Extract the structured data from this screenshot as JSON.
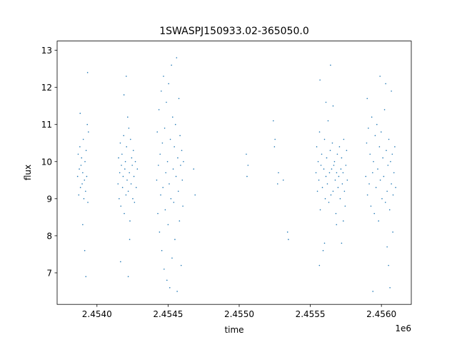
{
  "chart_data": {
    "type": "scatter",
    "title": "1SWASPJ150933.02-365050.0",
    "xlabel": "time",
    "ylabel": "flux",
    "x_offset_label": "1e6",
    "xlim": [
      2453720,
      2456210
    ],
    "ylim": [
      6.15,
      13.25
    ],
    "x_ticks": [
      {
        "value": 2454000,
        "label": "2.4540"
      },
      {
        "value": 2454500,
        "label": "2.4545"
      },
      {
        "value": 2455000,
        "label": "2.4550"
      },
      {
        "value": 2455500,
        "label": "2.4555"
      },
      {
        "value": 2456000,
        "label": "2.4560"
      }
    ],
    "y_ticks": [
      {
        "value": 7,
        "label": "7"
      },
      {
        "value": 8,
        "label": "8"
      },
      {
        "value": 9,
        "label": "9"
      },
      {
        "value": 10,
        "label": "10"
      },
      {
        "value": 11,
        "label": "11"
      },
      {
        "value": 12,
        "label": "12"
      },
      {
        "value": 13,
        "label": "13"
      }
    ],
    "grid": false,
    "marker_color": "#1f77b4",
    "series": [
      {
        "points": [
          [
            2453864,
            9.6
          ],
          [
            2453868,
            10.2
          ],
          [
            2453872,
            9.1
          ],
          [
            2453876,
            9.8
          ],
          [
            2453880,
            10.4
          ],
          [
            2453884,
            9.3
          ],
          [
            2453888,
            9.9
          ],
          [
            2453892,
            10.1
          ],
          [
            2453896,
            9.4
          ],
          [
            2453900,
            9.7
          ],
          [
            2453904,
            10.6
          ],
          [
            2453908,
            9.0
          ],
          [
            2453912,
            9.5
          ],
          [
            2453916,
            10.0
          ],
          [
            2453920,
            9.2
          ],
          [
            2453924,
            10.3
          ],
          [
            2453928,
            9.6
          ],
          [
            2453932,
            11.0
          ],
          [
            2453936,
            8.9
          ],
          [
            2453940,
            10.8
          ],
          [
            2453882,
            11.3
          ],
          [
            2453914,
            7.6
          ],
          [
            2453922,
            6.9
          ],
          [
            2453934,
            12.4
          ],
          [
            2453900,
            8.3
          ],
          [
            2454148,
            9.4
          ],
          [
            2454152,
            10.1
          ],
          [
            2454156,
            9.0
          ],
          [
            2454160,
            9.7
          ],
          [
            2454164,
            10.5
          ],
          [
            2454168,
            8.8
          ],
          [
            2454172,
            9.9
          ],
          [
            2454176,
            10.2
          ],
          [
            2454180,
            9.3
          ],
          [
            2454184,
            9.6
          ],
          [
            2454188,
            10.7
          ],
          [
            2454192,
            8.6
          ],
          [
            2454196,
            9.8
          ],
          [
            2454200,
            10.0
          ],
          [
            2454204,
            9.1
          ],
          [
            2454208,
            10.4
          ],
          [
            2454212,
            9.5
          ],
          [
            2454216,
            11.2
          ],
          [
            2454220,
            9.2
          ],
          [
            2454224,
            10.9
          ],
          [
            2454228,
            9.7
          ],
          [
            2454232,
            8.4
          ],
          [
            2454236,
            10.6
          ],
          [
            2454240,
            9.4
          ],
          [
            2454244,
            10.1
          ],
          [
            2454248,
            9.9
          ],
          [
            2454252,
            9.0
          ],
          [
            2454256,
            10.3
          ],
          [
            2454260,
            9.6
          ],
          [
            2454264,
            8.9
          ],
          [
            2454270,
            10.0
          ],
          [
            2454276,
            9.3
          ],
          [
            2454284,
            9.8
          ],
          [
            2454190,
            11.8
          ],
          [
            2454206,
            12.3
          ],
          [
            2454220,
            6.9
          ],
          [
            2454166,
            7.3
          ],
          [
            2454230,
            7.9
          ],
          [
            2454420,
            9.5
          ],
          [
            2454424,
            10.8
          ],
          [
            2454428,
            8.6
          ],
          [
            2454432,
            9.9
          ],
          [
            2454436,
            11.4
          ],
          [
            2454440,
            8.1
          ],
          [
            2454444,
            10.2
          ],
          [
            2454448,
            9.1
          ],
          [
            2454452,
            11.9
          ],
          [
            2454456,
            7.6
          ],
          [
            2454460,
            10.5
          ],
          [
            2454464,
            9.3
          ],
          [
            2454468,
            12.3
          ],
          [
            2454472,
            7.1
          ],
          [
            2454476,
            10.9
          ],
          [
            2454480,
            8.7
          ],
          [
            2454484,
            9.7
          ],
          [
            2454488,
            11.6
          ],
          [
            2454492,
            6.8
          ],
          [
            2454496,
            10.0
          ],
          [
            2454500,
            8.3
          ],
          [
            2454504,
            12.1
          ],
          [
            2454508,
            9.4
          ],
          [
            2454512,
            6.6
          ],
          [
            2454516,
            10.6
          ],
          [
            2454520,
            9.0
          ],
          [
            2454524,
            12.6
          ],
          [
            2454528,
            7.4
          ],
          [
            2454532,
            11.2
          ],
          [
            2454536,
            9.8
          ],
          [
            2454540,
            8.9
          ],
          [
            2454544,
            10.4
          ],
          [
            2454548,
            7.9
          ],
          [
            2454552,
            11.0
          ],
          [
            2454556,
            9.6
          ],
          [
            2454560,
            12.8
          ],
          [
            2454564,
            6.5
          ],
          [
            2454568,
            10.1
          ],
          [
            2454572,
            9.2
          ],
          [
            2454576,
            11.7
          ],
          [
            2454580,
            8.4
          ],
          [
            2454584,
            10.7
          ],
          [
            2454588,
            9.9
          ],
          [
            2454592,
            7.2
          ],
          [
            2454596,
            10.3
          ],
          [
            2454600,
            9.5
          ],
          [
            2454604,
            8.8
          ],
          [
            2454608,
            10.0
          ],
          [
            2454680,
            9.8
          ],
          [
            2454690,
            9.1
          ],
          [
            2455050,
            10.2
          ],
          [
            2455055,
            9.6
          ],
          [
            2455062,
            9.9
          ],
          [
            2455240,
            11.1
          ],
          [
            2455248,
            10.4
          ],
          [
            2455252,
            10.6
          ],
          [
            2455270,
            9.4
          ],
          [
            2455276,
            9.7
          ],
          [
            2455310,
            9.5
          ],
          [
            2455340,
            8.1
          ],
          [
            2455346,
            7.9
          ],
          [
            2455540,
            9.7
          ],
          [
            2455545,
            10.4
          ],
          [
            2455550,
            9.2
          ],
          [
            2455555,
            10.0
          ],
          [
            2455560,
            9.5
          ],
          [
            2455565,
            10.8
          ],
          [
            2455570,
            8.7
          ],
          [
            2455575,
            9.9
          ],
          [
            2455580,
            10.2
          ],
          [
            2455585,
            9.3
          ],
          [
            2455590,
            7.6
          ],
          [
            2455595,
            9.8
          ],
          [
            2455600,
            10.6
          ],
          [
            2455605,
            9.0
          ],
          [
            2455610,
            9.6
          ],
          [
            2455615,
            10.1
          ],
          [
            2455620,
            9.4
          ],
          [
            2455625,
            11.1
          ],
          [
            2455630,
            8.9
          ],
          [
            2455635,
            9.7
          ],
          [
            2455640,
            10.3
          ],
          [
            2455645,
            9.1
          ],
          [
            2455650,
            9.8
          ],
          [
            2455655,
            10.5
          ],
          [
            2455660,
            9.2
          ],
          [
            2455665,
            9.9
          ],
          [
            2455670,
            10.0
          ],
          [
            2455675,
            9.5
          ],
          [
            2455680,
            8.6
          ],
          [
            2455685,
            9.7
          ],
          [
            2455690,
            10.2
          ],
          [
            2455695,
            9.3
          ],
          [
            2455700,
            9.6
          ],
          [
            2455705,
            10.4
          ],
          [
            2455710,
            9.0
          ],
          [
            2455715,
            9.8
          ],
          [
            2455720,
            10.1
          ],
          [
            2455725,
            9.4
          ],
          [
            2455730,
            9.7
          ],
          [
            2455735,
            10.6
          ],
          [
            2455740,
            9.2
          ],
          [
            2455745,
            8.8
          ],
          [
            2455750,
            9.9
          ],
          [
            2455755,
            10.3
          ],
          [
            2455760,
            9.5
          ],
          [
            2455568,
            12.2
          ],
          [
            2455564,
            7.2
          ],
          [
            2455600,
            7.8
          ],
          [
            2455610,
            11.6
          ],
          [
            2455660,
            11.5
          ],
          [
            2455684,
            8.3
          ],
          [
            2455732,
            8.4
          ],
          [
            2455720,
            7.8
          ],
          [
            2455642,
            12.6
          ],
          [
            2455890,
            9.6
          ],
          [
            2455896,
            10.5
          ],
          [
            2455902,
            9.1
          ],
          [
            2455908,
            10.9
          ],
          [
            2455914,
            9.4
          ],
          [
            2455920,
            10.2
          ],
          [
            2455926,
            8.8
          ],
          [
            2455932,
            11.2
          ],
          [
            2455938,
            9.7
          ],
          [
            2455944,
            10.0
          ],
          [
            2455950,
            8.6
          ],
          [
            2455956,
            10.7
          ],
          [
            2455962,
            9.3
          ],
          [
            2455968,
            11.0
          ],
          [
            2455974,
            9.8
          ],
          [
            2455980,
            8.4
          ],
          [
            2455986,
            10.4
          ],
          [
            2455992,
            9.5
          ],
          [
            2455998,
            10.8
          ],
          [
            2456004,
            9.0
          ],
          [
            2456010,
            10.1
          ],
          [
            2456016,
            9.6
          ],
          [
            2456022,
            11.4
          ],
          [
            2456028,
            8.9
          ],
          [
            2456034,
            10.3
          ],
          [
            2456040,
            9.2
          ],
          [
            2456046,
            9.9
          ],
          [
            2456052,
            10.6
          ],
          [
            2456058,
            8.7
          ],
          [
            2456064,
            10.0
          ],
          [
            2456070,
            9.4
          ],
          [
            2456076,
            10.2
          ],
          [
            2456082,
            9.1
          ],
          [
            2456088,
            9.7
          ],
          [
            2456094,
            10.4
          ],
          [
            2456100,
            9.3
          ],
          [
            2455900,
            11.7
          ],
          [
            2455990,
            12.3
          ],
          [
            2456030,
            12.1
          ],
          [
            2456050,
            7.2
          ],
          [
            2456060,
            6.6
          ],
          [
            2456040,
            7.7
          ],
          [
            2456070,
            11.9
          ],
          [
            2456080,
            8.1
          ],
          [
            2455940,
            6.5
          ]
        ]
      }
    ]
  }
}
